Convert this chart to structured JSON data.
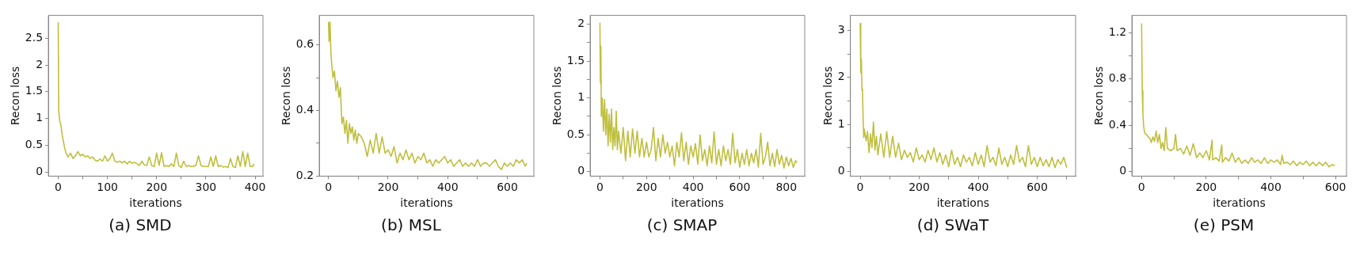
{
  "chart_data": [
    {
      "type": "line",
      "title": "(a) SMD",
      "xlabel": "iterations",
      "ylabel": "Recon loss",
      "xlim": [
        -20,
        416
      ],
      "ylim": [
        -0.08,
        2.93
      ],
      "xticks": [
        0,
        {
          "value": 50,
          "label": null
        },
        100,
        {
          "value": 150,
          "label": null
        },
        200,
        {
          "value": 250,
          "label": null
        },
        300,
        {
          "value": 350,
          "label": null
        },
        400
      ],
      "yticks": [
        0,
        0.5,
        1,
        1.5,
        2,
        2.5
      ],
      "series": [
        {
          "color": "#bfbf3f",
          "x": [
            0,
            1,
            3,
            5,
            8,
            10,
            13,
            16,
            20,
            25,
            30,
            35,
            40,
            45,
            50,
            55,
            60,
            65,
            70,
            75,
            80,
            85,
            90,
            95,
            100,
            105,
            110,
            115,
            120,
            125,
            130,
            135,
            140,
            145,
            150,
            155,
            160,
            165,
            170,
            175,
            180,
            185,
            190,
            195,
            200,
            205,
            210,
            215,
            220,
            225,
            230,
            235,
            240,
            245,
            250,
            255,
            260,
            265,
            270,
            275,
            280,
            285,
            290,
            295,
            300,
            305,
            310,
            315,
            320,
            325,
            330,
            335,
            340,
            345,
            350,
            355,
            360,
            365,
            370,
            375,
            380,
            385,
            390,
            395,
            398
          ],
          "values": [
            2.8,
            1.15,
            0.95,
            0.9,
            0.7,
            0.6,
            0.45,
            0.35,
            0.28,
            0.35,
            0.25,
            0.3,
            0.38,
            0.3,
            0.33,
            0.28,
            0.3,
            0.25,
            0.28,
            0.22,
            0.2,
            0.24,
            0.2,
            0.3,
            0.2,
            0.25,
            0.35,
            0.2,
            0.18,
            0.2,
            0.17,
            0.2,
            0.15,
            0.2,
            0.16,
            0.18,
            0.15,
            0.12,
            0.2,
            0.13,
            0.12,
            0.28,
            0.12,
            0.1,
            0.35,
            0.12,
            0.36,
            0.1,
            0.12,
            0.1,
            0.15,
            0.1,
            0.35,
            0.12,
            0.08,
            0.2,
            0.1,
            0.12,
            0.1,
            0.1,
            0.13,
            0.3,
            0.12,
            0.1,
            0.1,
            0.1,
            0.28,
            0.1,
            0.3,
            0.1,
            0.12,
            0.09,
            0.1,
            0.08,
            0.25,
            0.1,
            0.08,
            0.3,
            0.1,
            0.38,
            0.1,
            0.35,
            0.1,
            0.1,
            0.15
          ]
        }
      ]
    },
    {
      "type": "line",
      "title": "(b) MSL",
      "xlabel": "iterations",
      "ylabel": "Recon loss",
      "xlim": [
        -31,
        689
      ],
      "ylim": [
        0.2,
        0.69
      ],
      "xticks": [
        0,
        {
          "value": 100,
          "label": null
        },
        200,
        {
          "value": 300,
          "label": null
        },
        400,
        {
          "value": 500,
          "label": null
        },
        600
      ],
      "yticks": [
        0.2,
        {
          "value": 0.3,
          "label": null
        },
        0.4,
        {
          "value": 0.5,
          "label": null
        },
        0.6
      ],
      "series": [
        {
          "color": "#bfbf3f",
          "x": [
            0,
            2,
            5,
            8,
            10,
            15,
            20,
            25,
            30,
            35,
            40,
            45,
            50,
            55,
            60,
            65,
            70,
            75,
            80,
            85,
            90,
            95,
            100,
            110,
            120,
            130,
            140,
            150,
            160,
            170,
            180,
            190,
            200,
            210,
            220,
            230,
            240,
            250,
            260,
            270,
            280,
            290,
            300,
            310,
            320,
            330,
            340,
            350,
            360,
            370,
            380,
            390,
            400,
            410,
            420,
            430,
            440,
            450,
            460,
            470,
            480,
            490,
            500,
            510,
            520,
            530,
            540,
            550,
            560,
            570,
            580,
            590,
            600,
            610,
            620,
            630,
            640,
            650,
            660,
            665
          ],
          "values": [
            0.67,
            0.61,
            0.67,
            0.58,
            0.55,
            0.5,
            0.52,
            0.46,
            0.49,
            0.44,
            0.47,
            0.36,
            0.38,
            0.33,
            0.37,
            0.3,
            0.36,
            0.33,
            0.35,
            0.31,
            0.34,
            0.3,
            0.33,
            0.32,
            0.3,
            0.26,
            0.31,
            0.27,
            0.33,
            0.27,
            0.32,
            0.27,
            0.28,
            0.26,
            0.29,
            0.24,
            0.27,
            0.25,
            0.28,
            0.25,
            0.27,
            0.24,
            0.26,
            0.25,
            0.27,
            0.24,
            0.25,
            0.23,
            0.25,
            0.24,
            0.25,
            0.26,
            0.24,
            0.25,
            0.23,
            0.24,
            0.25,
            0.23,
            0.24,
            0.23,
            0.24,
            0.23,
            0.25,
            0.23,
            0.24,
            0.24,
            0.23,
            0.24,
            0.25,
            0.23,
            0.22,
            0.24,
            0.23,
            0.24,
            0.23,
            0.25,
            0.24,
            0.25,
            0.23,
            0.24
          ]
        }
      ]
    },
    {
      "type": "line",
      "title": "(c) SMAP",
      "xlabel": "iterations",
      "ylabel": "Recon loss",
      "xlim": [
        -42,
        879
      ],
      "ylim": [
        -0.06,
        2.12
      ],
      "xticks": [
        0,
        {
          "value": 100,
          "label": null
        },
        200,
        {
          "value": 300,
          "label": null
        },
        400,
        {
          "value": 500,
          "label": null
        },
        600,
        {
          "value": 700,
          "label": null
        },
        800
      ],
      "yticks": [
        0,
        {
          "value": 0.25,
          "label": null
        },
        0.5,
        {
          "value": 0.75,
          "label": null
        },
        1,
        {
          "value": 1.25,
          "label": null
        },
        1.5,
        {
          "value": 1.75,
          "label": null
        },
        2
      ],
      "series": [
        {
          "color": "#bfbf3f",
          "x": [
            0,
            2,
            4,
            6,
            10,
            15,
            20,
            25,
            30,
            35,
            40,
            45,
            50,
            55,
            60,
            65,
            70,
            75,
            80,
            90,
            100,
            110,
            120,
            130,
            140,
            150,
            160,
            170,
            180,
            190,
            200,
            210,
            220,
            230,
            240,
            250,
            260,
            270,
            280,
            290,
            300,
            310,
            320,
            330,
            340,
            350,
            360,
            370,
            380,
            390,
            400,
            410,
            420,
            430,
            440,
            450,
            460,
            470,
            480,
            490,
            500,
            510,
            520,
            530,
            540,
            550,
            560,
            570,
            580,
            590,
            600,
            610,
            620,
            630,
            640,
            650,
            660,
            670,
            680,
            690,
            700,
            710,
            720,
            730,
            740,
            750,
            760,
            770,
            780,
            790,
            800,
            810,
            820,
            830,
            840,
            845
          ],
          "values": [
            2.02,
            1.2,
            1.7,
            0.75,
            1.0,
            0.55,
            0.98,
            0.5,
            0.85,
            0.35,
            0.78,
            0.4,
            0.85,
            0.3,
            0.6,
            0.35,
            0.82,
            0.3,
            0.55,
            0.25,
            0.6,
            0.15,
            0.55,
            0.2,
            0.58,
            0.25,
            0.55,
            0.2,
            0.45,
            0.2,
            0.4,
            0.2,
            0.3,
            0.6,
            0.15,
            0.45,
            0.2,
            0.5,
            0.25,
            0.4,
            0.2,
            0.35,
            0.08,
            0.4,
            0.2,
            0.53,
            0.15,
            0.4,
            0.1,
            0.35,
            0.2,
            0.38,
            0.1,
            0.5,
            0.15,
            0.3,
            0.08,
            0.35,
            0.12,
            0.54,
            0.1,
            0.3,
            0.08,
            0.35,
            0.15,
            0.3,
            0.1,
            0.52,
            0.12,
            0.3,
            0.06,
            0.25,
            0.1,
            0.3,
            0.08,
            0.25,
            0.12,
            0.3,
            0.06,
            0.52,
            0.1,
            0.2,
            0.4,
            0.08,
            0.25,
            0.07,
            0.3,
            0.1,
            0.22,
            0.05,
            0.2,
            0.08,
            0.18,
            0.06,
            0.15,
            0.12
          ]
        }
      ]
    },
    {
      "type": "line",
      "title": "(d) SWaT",
      "xlabel": "iterations",
      "ylabel": "Recon loss",
      "xlim": [
        -33,
        730
      ],
      "ylim": [
        -0.1,
        3.32
      ],
      "xticks": [
        0,
        {
          "value": 100,
          "label": null
        },
        200,
        {
          "value": 300,
          "label": null
        },
        400,
        {
          "value": 500,
          "label": null
        },
        600,
        {
          "value": 700,
          "label": null
        }
      ],
      "yticks": [
        0,
        {
          "value": 0.5,
          "label": null
        },
        1,
        {
          "value": 1.5,
          "label": null
        },
        2,
        {
          "value": 2.5,
          "label": null
        },
        3
      ],
      "series": [
        {
          "color": "#bfbf3f",
          "x": [
            0,
            2,
            4,
            6,
            8,
            10,
            12,
            14,
            20,
            25,
            30,
            35,
            40,
            45,
            50,
            55,
            60,
            70,
            80,
            90,
            100,
            110,
            120,
            130,
            140,
            150,
            160,
            170,
            180,
            190,
            200,
            210,
            220,
            230,
            240,
            250,
            260,
            270,
            280,
            290,
            300,
            310,
            320,
            330,
            340,
            350,
            360,
            370,
            380,
            390,
            400,
            410,
            420,
            430,
            440,
            450,
            460,
            470,
            480,
            490,
            500,
            510,
            520,
            530,
            540,
            550,
            560,
            570,
            580,
            590,
            600,
            610,
            620,
            630,
            640,
            650,
            660,
            670,
            680,
            690,
            700
          ],
          "values": [
            3.15,
            2.1,
            2.4,
            1.75,
            1.7,
            1.1,
            0.72,
            0.9,
            0.65,
            0.85,
            0.4,
            0.8,
            0.5,
            1.05,
            0.45,
            0.75,
            0.35,
            0.8,
            0.3,
            0.85,
            0.3,
            0.75,
            0.3,
            0.6,
            0.25,
            0.45,
            0.3,
            0.4,
            0.2,
            0.5,
            0.25,
            0.35,
            0.2,
            0.45,
            0.25,
            0.5,
            0.2,
            0.4,
            0.15,
            0.35,
            0.1,
            0.45,
            0.15,
            0.3,
            0.1,
            0.35,
            0.2,
            0.3,
            0.12,
            0.4,
            0.15,
            0.35,
            0.1,
            0.55,
            0.2,
            0.3,
            0.12,
            0.5,
            0.15,
            0.3,
            0.1,
            0.35,
            0.15,
            0.55,
            0.2,
            0.3,
            0.1,
            0.55,
            0.15,
            0.3,
            0.1,
            0.3,
            0.12,
            0.25,
            0.1,
            0.3,
            0.08,
            0.25,
            0.15,
            0.3,
            0.08
          ]
        }
      ]
    },
    {
      "type": "line",
      "title": "(e) PSM",
      "xlabel": "iterations",
      "ylabel": "Recon loss",
      "xlim": [
        -30,
        634
      ],
      "ylim": [
        -0.04,
        1.35
      ],
      "xticks": [
        0,
        {
          "value": 100,
          "label": null
        },
        200,
        {
          "value": 300,
          "label": null
        },
        400,
        {
          "value": 500,
          "label": null
        },
        600
      ],
      "yticks": [
        0,
        {
          "value": 0.2,
          "label": null
        },
        0.4,
        {
          "value": 0.6,
          "label": null
        },
        0.8,
        {
          "value": 1,
          "label": null
        },
        1.2
      ],
      "series": [
        {
          "color": "#bfbf3f",
          "x": [
            0,
            2,
            4,
            6,
            8,
            10,
            15,
            20,
            25,
            30,
            35,
            40,
            45,
            50,
            55,
            60,
            65,
            70,
            75,
            80,
            90,
            100,
            105,
            110,
            120,
            130,
            140,
            150,
            160,
            170,
            180,
            190,
            200,
            210,
            218,
            220,
            230,
            240,
            248,
            250,
            260,
            270,
            280,
            290,
            300,
            310,
            320,
            330,
            340,
            350,
            360,
            370,
            380,
            390,
            400,
            410,
            420,
            430,
            435,
            440,
            450,
            460,
            470,
            480,
            490,
            500,
            510,
            520,
            530,
            540,
            550,
            560,
            570,
            580,
            590,
            598
          ],
          "values": [
            1.28,
            0.7,
            0.5,
            0.4,
            0.36,
            0.33,
            0.32,
            0.3,
            0.29,
            0.25,
            0.3,
            0.26,
            0.35,
            0.25,
            0.32,
            0.2,
            0.25,
            0.18,
            0.38,
            0.2,
            0.18,
            0.2,
            0.32,
            0.18,
            0.2,
            0.15,
            0.22,
            0.14,
            0.24,
            0.12,
            0.16,
            0.12,
            0.18,
            0.1,
            0.27,
            0.1,
            0.12,
            0.09,
            0.23,
            0.08,
            0.12,
            0.09,
            0.16,
            0.08,
            0.12,
            0.07,
            0.1,
            0.07,
            0.12,
            0.08,
            0.1,
            0.07,
            0.12,
            0.07,
            0.1,
            0.08,
            0.1,
            0.06,
            0.14,
            0.07,
            0.08,
            0.06,
            0.09,
            0.05,
            0.08,
            0.06,
            0.09,
            0.05,
            0.08,
            0.05,
            0.08,
            0.05,
            0.08,
            0.04,
            0.06,
            0.05
          ]
        }
      ]
    }
  ]
}
